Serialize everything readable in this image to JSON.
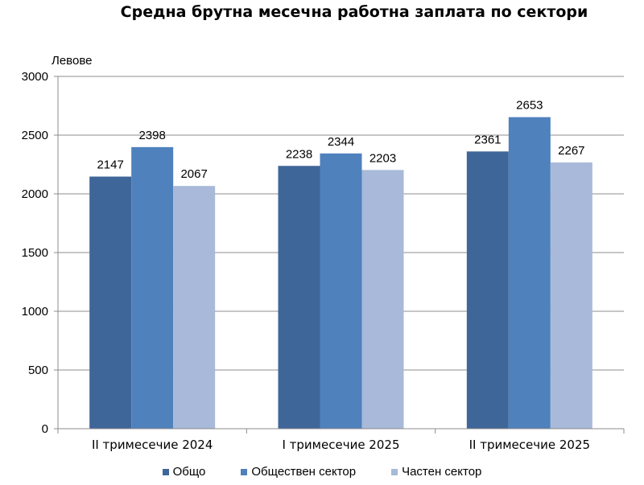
{
  "chart_data": {
    "type": "bar",
    "title": "Средна брутна месечна работна заплата по сектори",
    "ylabel": "Левове",
    "xlabel": "",
    "categories": [
      "II тримесечие 2024",
      "I тримесечие 2025",
      "II тримесечие 2025"
    ],
    "series": [
      {
        "name": "Общо",
        "values": [
          2147,
          2238,
          2361
        ],
        "color": "#3f6699"
      },
      {
        "name": "Обществен сектор",
        "values": [
          2398,
          2344,
          2653
        ],
        "color": "#4f81bd"
      },
      {
        "name": "Частен сектор",
        "values": [
          2067,
          2203,
          2267
        ],
        "color": "#a8b9d9"
      }
    ],
    "ylim": [
      0,
      3000
    ],
    "yticks": [
      0,
      500,
      1000,
      1500,
      2000,
      2500,
      3000
    ],
    "grid": true,
    "legend_position": "bottom",
    "data_labels": true
  }
}
